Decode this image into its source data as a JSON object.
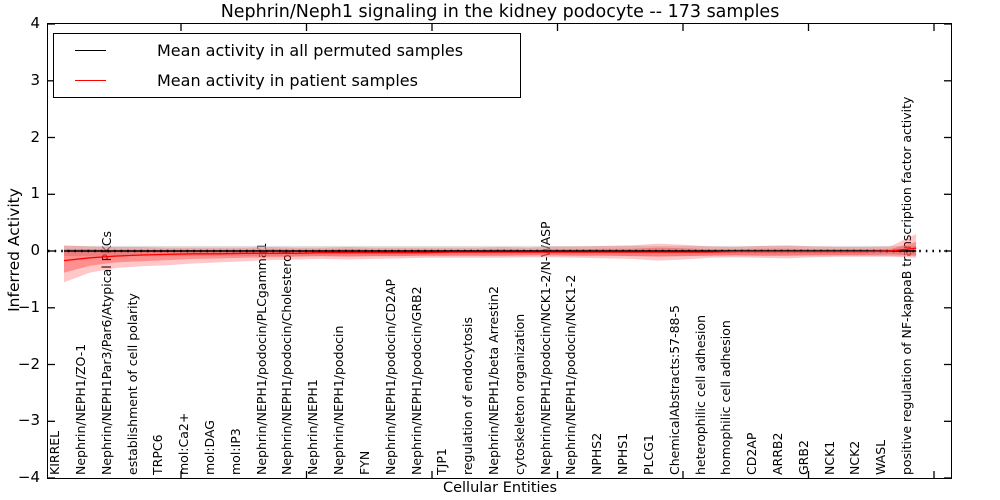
{
  "title": "Nephrin/Neph1 signaling in the kidney podocyte -- 173 samples",
  "axes": {
    "x_label": "Cellular Entities",
    "y_label": "Inferred Activity",
    "y_ticks": [
      "4",
      "3",
      "2",
      "1",
      "0",
      "−1",
      "−2",
      "−3",
      "−4"
    ]
  },
  "legend": {
    "items": [
      {
        "label": "Mean activity in all permuted samples",
        "color": "#000000"
      },
      {
        "label": "Mean activity in patient samples",
        "color": "#ff0000"
      }
    ]
  },
  "chart_data": {
    "type": "line",
    "title": "Nephrin/Neph1 signaling in the kidney podocyte -- 173 samples",
    "xlabel": "Cellular Entities",
    "ylabel": "Inferred Activity",
    "ylim": [
      -4,
      4
    ],
    "y_tick_step": 1,
    "grid": false,
    "legend_position": "upper left",
    "categories": [
      "KIRREL",
      "Nephrin/NEPH1/ZO-1",
      "Nephrin/NEPH1Par3/Par6/Atypical PKCs",
      "establishment of cell polarity",
      "TRPC6",
      "mol:Ca2+",
      "mol:DAG",
      "mol:IP3",
      "Nephrin/NEPH1/podocin/PLCgamma1",
      "Nephrin/NEPH1/podocin/Cholesterol",
      "Nephrin/NEPH1",
      "Nephrin/NEPH1/podocin",
      "FYN",
      "Nephrin/NEPH1/podocin/CD2AP",
      "Nephrin/NEPH1/podocin/GRB2",
      "TJP1",
      "regulation of endocytosis",
      "Nephrin/NEPH1/beta Arrestin2",
      "cytoskeleton organization",
      "Nephrin/NEPH1/podocin/NCK1-2/N-WASP",
      "Nephrin/NEPH1/podocin/NCK1-2",
      "NPHS2",
      "NPHS1",
      "PLCG1",
      "ChemicalAbstracts:57-88-5",
      "heterophilic cell adhesion",
      "homophilic cell adhesion",
      "CD2AP",
      "ARRB2",
      "GRB2",
      "NCK1",
      "NCK2",
      "WASL",
      "positive regulation of NF-kappaB transcription factor activity"
    ],
    "series": [
      {
        "name": "Mean activity in all permuted samples",
        "color": "#000000",
        "style": "flat-line-with-dotted-overlay",
        "value": 0.0,
        "band_lower": -0.09,
        "band_upper": 0.09,
        "band_color": "#c8c8c8"
      },
      {
        "name": "Mean activity in patient samples",
        "color": "#ff0000",
        "style": "line-with-bands",
        "values": [
          -0.17,
          -0.12,
          -0.09,
          -0.07,
          -0.06,
          -0.05,
          -0.05,
          -0.04,
          -0.04,
          -0.04,
          -0.03,
          -0.03,
          -0.03,
          -0.03,
          -0.03,
          -0.02,
          -0.02,
          -0.02,
          -0.02,
          -0.02,
          -0.02,
          -0.02,
          -0.02,
          -0.02,
          -0.02,
          -0.02,
          -0.01,
          -0.01,
          -0.01,
          -0.01,
          -0.01,
          -0.01,
          0.0,
          0.05
        ],
        "band_outer_lower": [
          -0.55,
          -0.38,
          -0.3,
          -0.27,
          -0.25,
          -0.22,
          -0.2,
          -0.18,
          -0.16,
          -0.15,
          -0.14,
          -0.15,
          -0.14,
          -0.13,
          -0.12,
          -0.12,
          -0.12,
          -0.12,
          -0.11,
          -0.11,
          -0.12,
          -0.13,
          -0.14,
          -0.17,
          -0.15,
          -0.12,
          -0.11,
          -0.12,
          -0.13,
          -0.11,
          -0.1,
          -0.1,
          -0.1,
          -0.12
        ],
        "band_outer_upper": [
          0.1,
          0.08,
          0.07,
          0.07,
          0.06,
          0.06,
          0.06,
          0.06,
          0.07,
          0.06,
          0.06,
          0.07,
          0.06,
          0.06,
          0.06,
          0.06,
          0.06,
          0.07,
          0.06,
          0.08,
          0.08,
          0.09,
          0.1,
          0.13,
          0.11,
          0.08,
          0.07,
          0.09,
          0.1,
          0.08,
          0.07,
          0.07,
          0.08,
          0.3
        ],
        "band_inner_lower": [
          -0.38,
          -0.26,
          -0.2,
          -0.18,
          -0.16,
          -0.14,
          -0.13,
          -0.12,
          -0.11,
          -0.1,
          -0.09,
          -0.1,
          -0.09,
          -0.09,
          -0.08,
          -0.08,
          -0.08,
          -0.08,
          -0.07,
          -0.07,
          -0.08,
          -0.08,
          -0.09,
          -0.1,
          -0.09,
          -0.08,
          -0.07,
          -0.08,
          -0.08,
          -0.07,
          -0.07,
          -0.07,
          -0.06,
          -0.08
        ],
        "band_inner_upper": [
          0.03,
          0.03,
          0.02,
          0.02,
          0.02,
          0.02,
          0.02,
          0.02,
          0.03,
          0.02,
          0.02,
          0.03,
          0.02,
          0.02,
          0.02,
          0.02,
          0.02,
          0.03,
          0.02,
          0.03,
          0.03,
          0.04,
          0.04,
          0.06,
          0.05,
          0.03,
          0.03,
          0.04,
          0.04,
          0.03,
          0.03,
          0.03,
          0.03,
          0.16
        ]
      }
    ]
  }
}
